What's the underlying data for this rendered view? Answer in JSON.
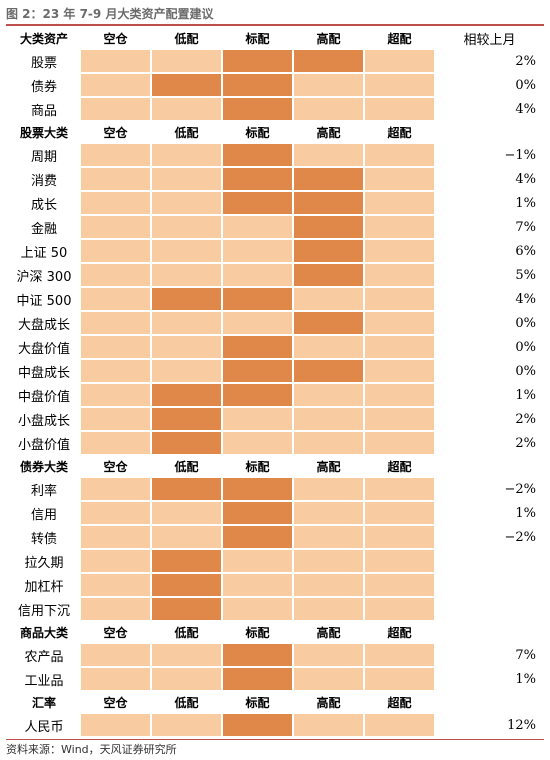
{
  "title": "图 2：23 年 7-9 月大类资产配置建议",
  "source": "资料来源：Wind，天风证券研究所",
  "colors": {
    "low": "#f8cba0",
    "high": "#e0874a",
    "rule": "#c0504d"
  },
  "columns": [
    "空仓",
    "低配",
    "标配",
    "高配",
    "超配"
  ],
  "change_header": "相较上月",
  "sections": [
    {
      "header": "大类资产",
      "show_change_header": true,
      "rows": [
        {
          "label": "股票",
          "level": 2.5,
          "change": "2%"
        },
        {
          "label": "债券",
          "level": 1.5,
          "change": "0%"
        },
        {
          "label": "商品",
          "level": 2,
          "change": "4%"
        }
      ]
    },
    {
      "header": "股票大类",
      "show_change_header": false,
      "rows": [
        {
          "label": "周期",
          "level": 2,
          "change": "−1%"
        },
        {
          "label": "消费",
          "level": 2.5,
          "change": "4%"
        },
        {
          "label": "成长",
          "level": 2.5,
          "change": "1%"
        },
        {
          "label": "金融",
          "level": 3,
          "change": "7%"
        },
        {
          "label": "上证 50",
          "level": 3,
          "change": "6%"
        },
        {
          "label": "沪深 300",
          "level": 3,
          "change": "5%"
        },
        {
          "label": "中证 500",
          "level": 1.5,
          "change": "4%"
        },
        {
          "label": "大盘成长",
          "level": 3,
          "change": "0%"
        },
        {
          "label": "大盘价值",
          "level": 2,
          "change": "0%"
        },
        {
          "label": "中盘成长",
          "level": 2.5,
          "change": "0%"
        },
        {
          "label": "中盘价值",
          "level": 1.5,
          "change": "1%"
        },
        {
          "label": "小盘成长",
          "level": 1,
          "change": "2%"
        },
        {
          "label": "小盘价值",
          "level": 1,
          "change": "2%"
        }
      ]
    },
    {
      "header": "债券大类",
      "show_change_header": false,
      "rows": [
        {
          "label": "利率",
          "level": 1.5,
          "change": "−2%"
        },
        {
          "label": "信用",
          "level": 2,
          "change": "1%"
        },
        {
          "label": "转债",
          "level": 2,
          "change": "−2%"
        },
        {
          "label": "拉久期",
          "level": 1,
          "change": ""
        },
        {
          "label": "加杠杆",
          "level": 1,
          "change": ""
        },
        {
          "label": "信用下沉",
          "level": 1,
          "change": ""
        }
      ]
    },
    {
      "header": "商品大类",
      "show_change_header": false,
      "rows": [
        {
          "label": "农产品",
          "level": 2,
          "change": "7%"
        },
        {
          "label": "工业品",
          "level": 2,
          "change": "1%"
        }
      ]
    },
    {
      "header": "汇率",
      "show_change_header": false,
      "rows": [
        {
          "label": "人民币",
          "level": 2,
          "change": "12%"
        }
      ]
    }
  ]
}
